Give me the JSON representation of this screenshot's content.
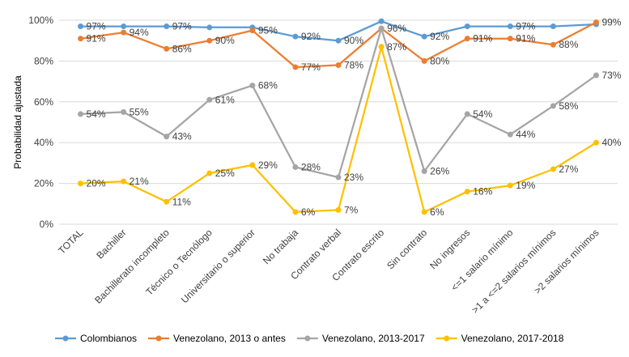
{
  "chart_data": {
    "type": "line",
    "ylabel": "Probabilidad ajustada",
    "xlabel": "",
    "title": "",
    "ylim": [
      0,
      100
    ],
    "y_ticks": [
      "0%",
      "20%",
      "40%",
      "60%",
      "80%",
      "100%"
    ],
    "y_tick_values": [
      0,
      20,
      40,
      60,
      80,
      100
    ],
    "grid": true,
    "legend_position": "bottom",
    "categories": [
      "TOTAL",
      "Bachiller",
      "Bachillerato incompleto",
      "Técnico o Tecnólogo",
      "Universitario o superior",
      "No trabaja",
      "Contrato verbal",
      "Contrato escrito",
      "Sin contrato",
      "No ingresos",
      "<=1 salario mínimo",
      ">1 a <=2 salarios mínimos",
      ">2 salarios mínimos"
    ],
    "series": [
      {
        "name": "Colombianos",
        "color": "#5B9BD5",
        "values": [
          97,
          97,
          97,
          96.5,
          96.5,
          92,
          90,
          99.5,
          92,
          97,
          97,
          97,
          98
        ],
        "labels": [
          "97%",
          null,
          "97%",
          null,
          null,
          "92%",
          "90%",
          null,
          "92%",
          null,
          "97%",
          null,
          null
        ]
      },
      {
        "name": "Venezolano, 2013 o antes",
        "color": "#ED7D31",
        "values": [
          91,
          94,
          86,
          90,
          95,
          77,
          78,
          96,
          80,
          91,
          91,
          88,
          99
        ],
        "labels": [
          "91%",
          "94%",
          "86%",
          "90%",
          "95%",
          "77%",
          "78%",
          "96%",
          "80%",
          "91%",
          "91%",
          "88%",
          "99%"
        ]
      },
      {
        "name": "Venezolano, 2013-2017",
        "color": "#A5A5A5",
        "values": [
          54,
          55,
          43,
          61,
          68,
          28,
          23,
          96,
          26,
          54,
          44,
          58,
          73
        ],
        "labels": [
          "54%",
          "55%",
          "43%",
          "61%",
          "68%",
          "28%",
          "23%",
          null,
          "26%",
          "54%",
          "44%",
          "58%",
          "73%"
        ]
      },
      {
        "name": "Venezolano, 2017-2018",
        "color": "#FFC000",
        "values": [
          20,
          21,
          11,
          25,
          29,
          6,
          7,
          87,
          6,
          16,
          19,
          27,
          40
        ],
        "labels": [
          "20%",
          "21%",
          "11%",
          "25%",
          "29%",
          "6%",
          "7%",
          "87%",
          "6%",
          "16%",
          "19%",
          "27%",
          "40%"
        ]
      }
    ]
  }
}
